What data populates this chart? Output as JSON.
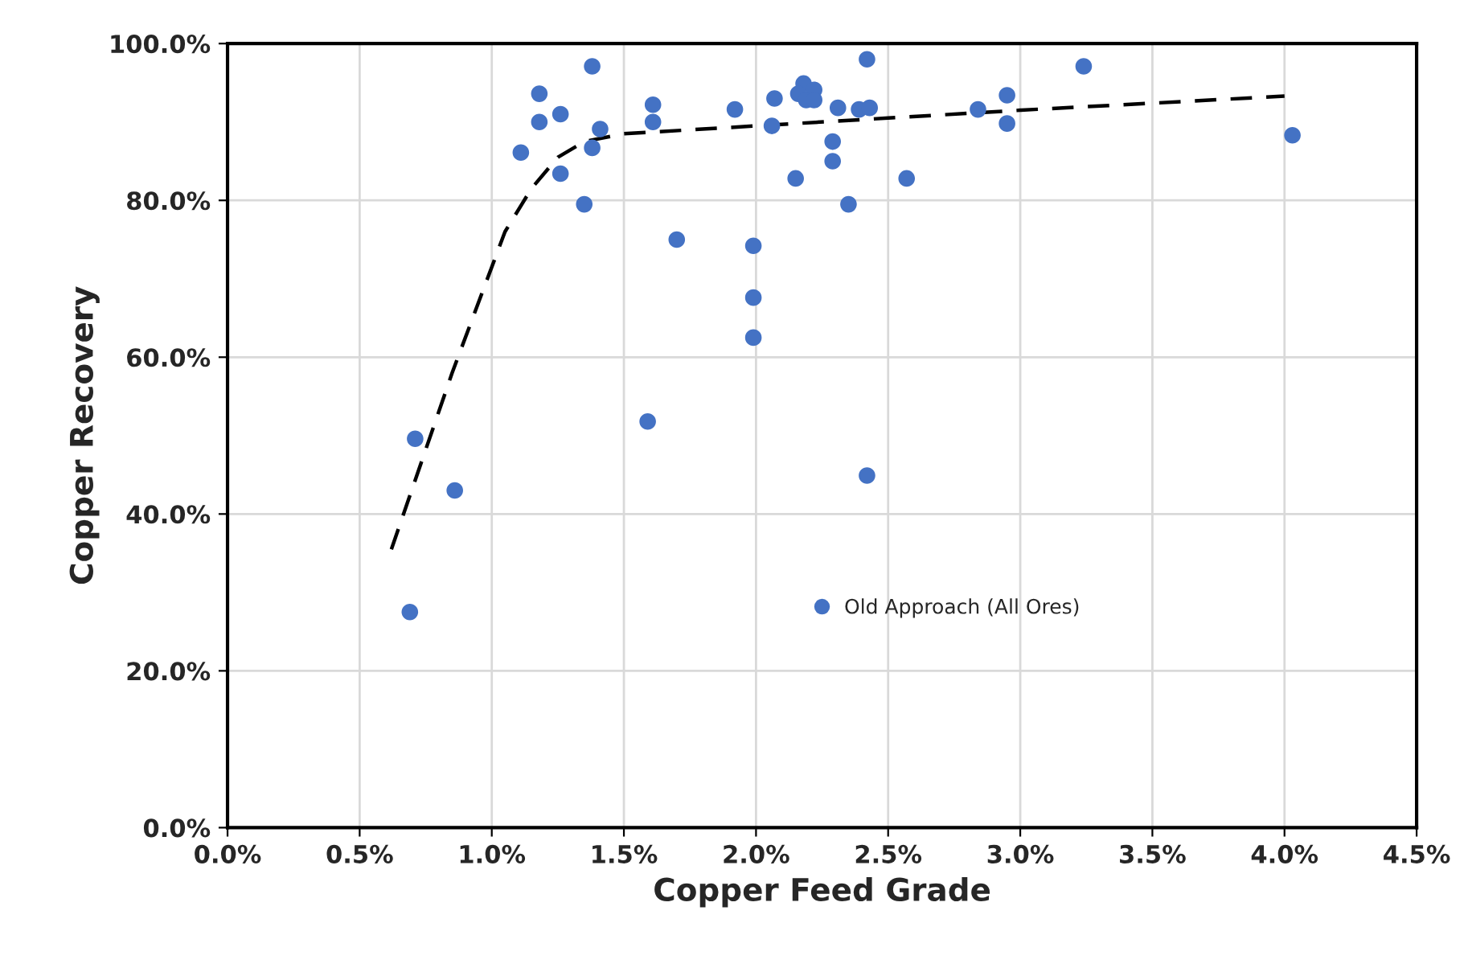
{
  "chart_data": {
    "type": "scatter",
    "xlabel": "Copper Feed Grade",
    "ylabel": "Copper Recovery",
    "xlim": [
      0,
      4.5
    ],
    "ylim": [
      0,
      100
    ],
    "xticks": [
      {
        "value": 0,
        "label": "0.0%"
      },
      {
        "value": 0.5,
        "label": "0.5%"
      },
      {
        "value": 1.0,
        "label": "1.0%"
      },
      {
        "value": 1.5,
        "label": "1.5%"
      },
      {
        "value": 2.0,
        "label": "2.0%"
      },
      {
        "value": 2.5,
        "label": "2.5%"
      },
      {
        "value": 3.0,
        "label": "3.0%"
      },
      {
        "value": 3.5,
        "label": "3.5%"
      },
      {
        "value": 4.0,
        "label": "4.0%"
      },
      {
        "value": 4.5,
        "label": "4.5%"
      }
    ],
    "yticks": [
      {
        "value": 0,
        "label": "0.0%"
      },
      {
        "value": 20,
        "label": "20.0%"
      },
      {
        "value": 40,
        "label": "40.0%"
      },
      {
        "value": 60,
        "label": "60.0%"
      },
      {
        "value": 80,
        "label": "80.0%"
      },
      {
        "value": 100,
        "label": "100.0%"
      }
    ],
    "grid": true,
    "legend": "center",
    "series": [
      {
        "name": "Old Approach (All Ores)",
        "color": "#4472c4",
        "marker": "circle",
        "x": [
          1.18,
          1.18,
          1.26,
          1.11,
          1.38,
          1.41,
          1.38,
          1.26,
          1.35,
          1.61,
          1.61,
          1.7,
          1.59,
          1.92,
          1.99,
          1.99,
          1.99,
          2.07,
          2.06,
          2.18,
          2.16,
          2.22,
          2.19,
          2.22,
          2.15,
          2.29,
          2.29,
          2.31,
          2.35,
          2.42,
          2.39,
          2.43,
          2.42,
          2.57,
          2.84,
          2.95,
          2.95,
          3.24,
          4.03,
          0.71,
          0.86,
          0.69
        ],
        "values": [
          93.6,
          90.0,
          91.0,
          86.1,
          97.1,
          89.1,
          86.7,
          83.4,
          79.5,
          92.2,
          90.0,
          75.0,
          51.8,
          91.6,
          74.2,
          67.6,
          62.5,
          93.0,
          89.5,
          94.9,
          93.6,
          94.1,
          92.8,
          92.8,
          82.8,
          87.5,
          85.0,
          91.8,
          79.5,
          98.0,
          91.6,
          91.8,
          44.9,
          82.8,
          91.6,
          93.4,
          89.8,
          97.1,
          88.3,
          49.6,
          43.0,
          27.5
        ]
      },
      {
        "type": "line",
        "color": "#000000",
        "line_style": "dashed",
        "marker": "none",
        "x": [
          0.62,
          0.85,
          1.05,
          1.15,
          1.25,
          1.35,
          1.5,
          2.0,
          2.5,
          3.0,
          3.5,
          4.0
        ],
        "values": [
          35.5,
          58,
          76,
          81.5,
          85.5,
          87.5,
          88.5,
          89.5,
          90.5,
          91.5,
          92.4,
          93.3
        ]
      }
    ]
  }
}
